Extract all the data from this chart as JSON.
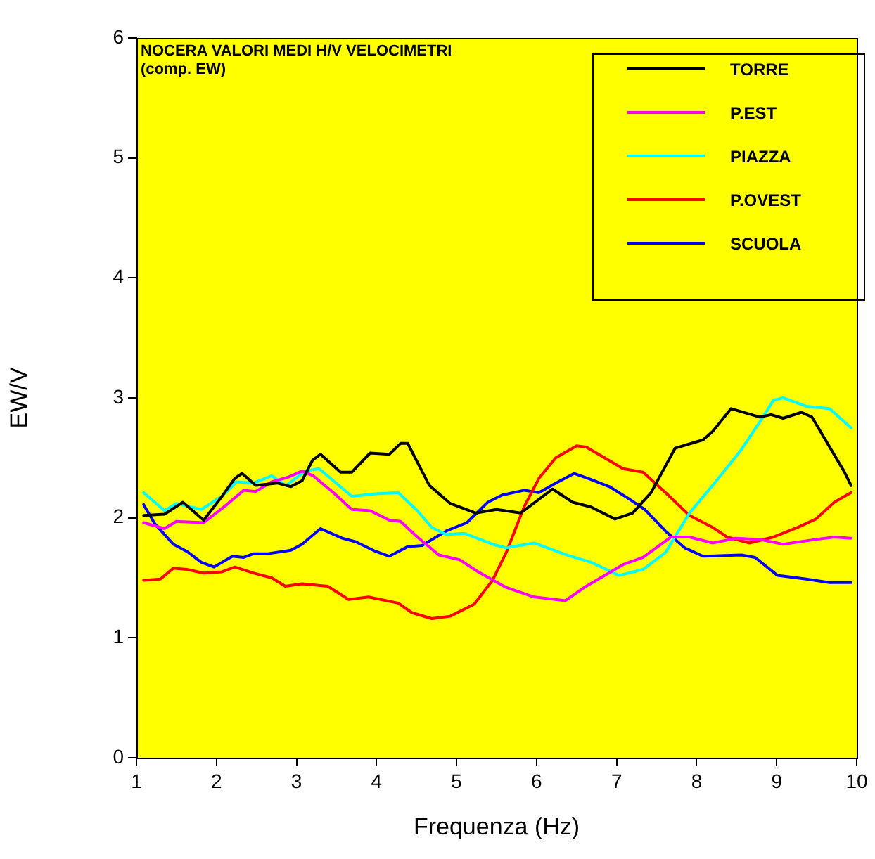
{
  "chart_data": {
    "type": "line",
    "title": "NOCERA VALORI MEDI H/V VELOCIMETRI",
    "subtitle": "(comp. EW)",
    "xlabel": "Frequenza (Hz)",
    "ylabel": "EW/V",
    "xlim": [
      1,
      10
    ],
    "xticks": [
      1,
      2,
      3,
      4,
      5,
      6,
      7,
      8,
      9,
      10
    ],
    "ylim": [
      0,
      6
    ],
    "yticks": [
      0,
      1,
      2,
      3,
      4,
      5,
      6
    ],
    "grid": false,
    "legend": "top right",
    "marker": "none",
    "line_style": "solid",
    "series": [
      {
        "name": "TORRE",
        "color": "#000000",
        "x": [
          1.09,
          1.35,
          1.58,
          1.84,
          2.07,
          2.23,
          2.32,
          2.49,
          2.76,
          2.93,
          3.07,
          3.2,
          3.3,
          3.55,
          3.69,
          3.92,
          4.16,
          4.3,
          4.39,
          4.66,
          4.92,
          5.24,
          5.5,
          5.8,
          6.2,
          6.45,
          6.68,
          6.98,
          7.2,
          7.43,
          7.73,
          8.08,
          8.2,
          8.43,
          8.79,
          8.93,
          9.08,
          9.31,
          9.44,
          9.84,
          9.93
        ],
        "values": [
          2.02,
          2.03,
          2.13,
          1.98,
          2.18,
          2.33,
          2.37,
          2.27,
          2.29,
          2.26,
          2.31,
          2.48,
          2.53,
          2.38,
          2.38,
          2.54,
          2.53,
          2.62,
          2.62,
          2.27,
          2.12,
          2.04,
          2.07,
          2.04,
          2.24,
          2.13,
          2.09,
          1.99,
          2.04,
          2.21,
          2.58,
          2.65,
          2.72,
          2.91,
          2.84,
          2.86,
          2.83,
          2.88,
          2.84,
          2.39,
          2.27
        ]
      },
      {
        "name": "P.EST",
        "color": "#ff00ff",
        "x": [
          1.09,
          1.35,
          1.5,
          1.84,
          2.11,
          2.34,
          2.49,
          2.69,
          2.9,
          3.07,
          3.21,
          3.46,
          3.69,
          3.92,
          4.16,
          4.3,
          4.51,
          4.78,
          5.04,
          5.27,
          5.62,
          5.97,
          6.36,
          6.62,
          7.08,
          7.33,
          7.68,
          7.91,
          8.2,
          8.49,
          8.79,
          9.08,
          9.49,
          9.72,
          9.93
        ],
        "values": [
          1.96,
          1.91,
          1.97,
          1.96,
          2.1,
          2.23,
          2.22,
          2.3,
          2.34,
          2.39,
          2.35,
          2.21,
          2.07,
          2.06,
          1.98,
          1.97,
          1.84,
          1.69,
          1.65,
          1.55,
          1.42,
          1.34,
          1.31,
          1.43,
          1.61,
          1.67,
          1.84,
          1.84,
          1.79,
          1.83,
          1.82,
          1.78,
          1.82,
          1.84,
          1.83
        ]
      },
      {
        "name": "PIAZZA",
        "color": "#00ffff",
        "x": [
          1.09,
          1.35,
          1.5,
          1.81,
          2.07,
          2.25,
          2.46,
          2.69,
          2.87,
          3.11,
          3.28,
          3.46,
          3.69,
          3.99,
          4.27,
          4.51,
          4.69,
          4.87,
          5.1,
          5.45,
          5.62,
          5.97,
          6.38,
          6.68,
          7.03,
          7.33,
          7.61,
          7.91,
          8.2,
          8.56,
          8.79,
          8.96,
          9.08,
          9.37,
          9.66,
          9.93
        ],
        "values": [
          2.21,
          2.06,
          2.12,
          2.07,
          2.18,
          2.3,
          2.29,
          2.35,
          2.27,
          2.39,
          2.41,
          2.31,
          2.18,
          2.2,
          2.21,
          2.06,
          1.92,
          1.86,
          1.87,
          1.78,
          1.75,
          1.79,
          1.69,
          1.63,
          1.52,
          1.57,
          1.71,
          2.04,
          2.27,
          2.57,
          2.8,
          2.98,
          3.0,
          2.93,
          2.91,
          2.75
        ]
      },
      {
        "name": "P.OVEST",
        "color": "#ff0000",
        "x": [
          1.09,
          1.3,
          1.46,
          1.63,
          1.84,
          2.07,
          2.23,
          2.46,
          2.69,
          2.86,
          3.07,
          3.39,
          3.65,
          3.9,
          4.27,
          4.44,
          4.69,
          4.92,
          5.22,
          5.45,
          5.62,
          5.85,
          6.03,
          6.24,
          6.5,
          6.62,
          6.85,
          7.08,
          7.33,
          7.61,
          7.91,
          8.2,
          8.38,
          8.66,
          8.96,
          9.26,
          9.49,
          9.72,
          9.93
        ],
        "values": [
          1.48,
          1.49,
          1.58,
          1.57,
          1.54,
          1.55,
          1.59,
          1.54,
          1.5,
          1.43,
          1.45,
          1.43,
          1.32,
          1.34,
          1.29,
          1.21,
          1.16,
          1.18,
          1.28,
          1.48,
          1.71,
          2.1,
          2.33,
          2.5,
          2.6,
          2.59,
          2.5,
          2.41,
          2.38,
          2.21,
          2.02,
          1.92,
          1.84,
          1.79,
          1.84,
          1.92,
          1.99,
          2.13,
          2.21
        ]
      },
      {
        "name": "SCUOLA",
        "color": "#0000ff",
        "x": [
          1.09,
          1.23,
          1.46,
          1.63,
          1.81,
          1.97,
          2.2,
          2.34,
          2.46,
          2.63,
          2.93,
          3.07,
          3.3,
          3.57,
          3.74,
          3.99,
          4.16,
          4.39,
          4.57,
          4.87,
          5.13,
          5.39,
          5.57,
          5.85,
          6.03,
          6.24,
          6.47,
          6.68,
          6.91,
          7.15,
          7.35,
          7.61,
          7.85,
          8.08,
          8.56,
          8.73,
          9.01,
          9.37,
          9.66,
          9.93
        ],
        "values": [
          2.11,
          1.95,
          1.78,
          1.72,
          1.63,
          1.59,
          1.68,
          1.67,
          1.7,
          1.7,
          1.73,
          1.78,
          1.91,
          1.83,
          1.8,
          1.72,
          1.68,
          1.76,
          1.77,
          1.89,
          1.96,
          2.13,
          2.19,
          2.23,
          2.21,
          2.29,
          2.37,
          2.32,
          2.26,
          2.16,
          2.07,
          1.89,
          1.75,
          1.68,
          1.69,
          1.67,
          1.52,
          1.49,
          1.46,
          1.46
        ]
      }
    ]
  }
}
